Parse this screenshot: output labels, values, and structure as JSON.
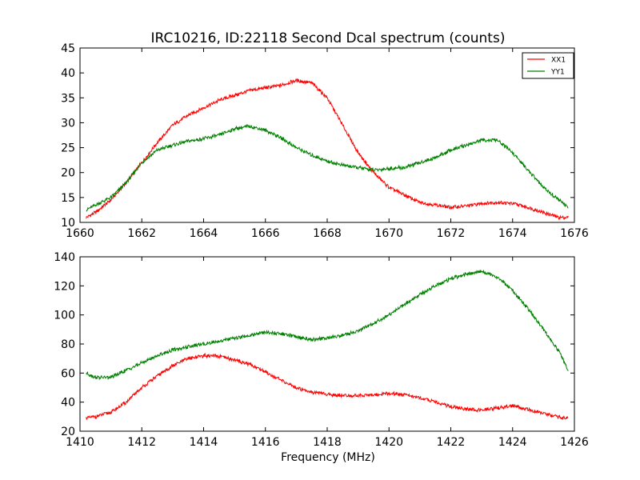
{
  "chart_data": [
    {
      "type": "line",
      "title": "IRC10216, ID:22118 Second Dcal spectrum (counts)",
      "xlabel": "",
      "ylabel": "",
      "xlim": [
        1660,
        1676
      ],
      "ylim": [
        10,
        45
      ],
      "x_ticks": [
        "1660",
        "1662",
        "1664",
        "1666",
        "1668",
        "1670",
        "1672",
        "1674",
        "1676"
      ],
      "y_ticks": [
        "10",
        "15",
        "20",
        "25",
        "30",
        "35",
        "40",
        "45"
      ],
      "grid": false,
      "legend_position": "top-right",
      "series": [
        {
          "name": "XX1",
          "color": "#ff0000",
          "x": [
            1660.2,
            1660.5,
            1661.0,
            1661.5,
            1662.0,
            1662.5,
            1663.0,
            1663.5,
            1664.0,
            1664.5,
            1665.0,
            1665.5,
            1666.0,
            1666.5,
            1667.0,
            1667.5,
            1668.0,
            1668.5,
            1669.0,
            1669.5,
            1670.0,
            1670.5,
            1671.0,
            1671.5,
            1672.0,
            1672.5,
            1673.0,
            1673.5,
            1674.0,
            1674.5,
            1675.0,
            1675.5,
            1675.8
          ],
          "y": [
            11,
            12,
            14.5,
            18,
            22,
            26,
            29.5,
            31.5,
            33,
            34.5,
            35.5,
            36.5,
            37,
            37.5,
            38.5,
            38,
            35,
            29.5,
            24,
            20,
            17,
            15.5,
            14,
            13.5,
            13,
            13.3,
            13.8,
            14,
            13.8,
            13,
            12,
            11,
            11
          ]
        },
        {
          "name": "YY1",
          "color": "#008000",
          "x": [
            1660.2,
            1660.5,
            1661.0,
            1661.5,
            1662.0,
            1662.5,
            1663.0,
            1663.5,
            1664.0,
            1664.5,
            1665.0,
            1665.5,
            1666.0,
            1666.5,
            1667.0,
            1667.5,
            1668.0,
            1668.5,
            1669.0,
            1669.5,
            1670.0,
            1670.5,
            1671.0,
            1671.5,
            1672.0,
            1672.5,
            1673.0,
            1673.5,
            1674.0,
            1674.5,
            1675.0,
            1675.5,
            1675.8
          ],
          "y": [
            12.5,
            13.5,
            15,
            18,
            22,
            24.5,
            25.5,
            26.3,
            26.8,
            27.5,
            28.8,
            29.3,
            28.5,
            27,
            25,
            23.5,
            22.3,
            21.5,
            21,
            20.5,
            20.8,
            21,
            22,
            23,
            24.5,
            25.5,
            26.5,
            26.5,
            24,
            20.5,
            17,
            14.5,
            13
          ]
        }
      ]
    },
    {
      "type": "line",
      "title": "",
      "xlabel": "Frequency (MHz)",
      "ylabel": "",
      "xlim": [
        1410,
        1426
      ],
      "ylim": [
        20,
        140
      ],
      "x_ticks": [
        "1410",
        "1412",
        "1414",
        "1416",
        "1418",
        "1420",
        "1422",
        "1424",
        "1426"
      ],
      "y_ticks": [
        "20",
        "40",
        "60",
        "80",
        "100",
        "120",
        "140"
      ],
      "grid": false,
      "legend_position": "none",
      "series": [
        {
          "name": "",
          "color": "#ff0000",
          "x": [
            1410.2,
            1410.5,
            1411.0,
            1411.5,
            1412.0,
            1412.5,
            1413.0,
            1413.5,
            1414.0,
            1414.5,
            1415.0,
            1415.5,
            1416.0,
            1416.5,
            1417.0,
            1417.5,
            1418.0,
            1418.5,
            1419.0,
            1419.5,
            1420.0,
            1420.5,
            1421.0,
            1421.5,
            1422.0,
            1422.5,
            1423.0,
            1423.5,
            1424.0,
            1424.5,
            1425.0,
            1425.5,
            1425.8
          ],
          "y": [
            29,
            30,
            33,
            40,
            50,
            58,
            65,
            70,
            72,
            71.5,
            69,
            66,
            61,
            55,
            50,
            47,
            45.5,
            44.5,
            44.5,
            45,
            46,
            45,
            43,
            40,
            37,
            35,
            34.5,
            36,
            37.5,
            35,
            32,
            29.5,
            29
          ]
        },
        {
          "name": "",
          "color": "#008000",
          "x": [
            1410.2,
            1410.5,
            1411.0,
            1411.5,
            1412.0,
            1412.5,
            1413.0,
            1413.5,
            1414.0,
            1414.5,
            1415.0,
            1415.5,
            1416.0,
            1416.5,
            1417.0,
            1417.5,
            1418.0,
            1418.5,
            1419.0,
            1419.5,
            1420.0,
            1420.5,
            1421.0,
            1421.5,
            1422.0,
            1422.5,
            1423.0,
            1423.5,
            1424.0,
            1424.5,
            1425.0,
            1425.5,
            1425.8
          ],
          "y": [
            60,
            57,
            57,
            62,
            67,
            72,
            76,
            78,
            80,
            82,
            84,
            86,
            88,
            87,
            85,
            83,
            84,
            86,
            89,
            94,
            100,
            107,
            114,
            120,
            125,
            128,
            130,
            126,
            117,
            104,
            90,
            75,
            62
          ]
        }
      ]
    }
  ]
}
